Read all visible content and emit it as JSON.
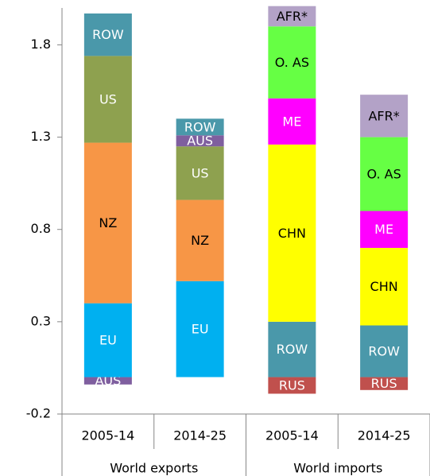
{
  "chart_data": {
    "type": "stacked_bar",
    "categories": [
      "2005-14",
      "2014-25",
      "2005-14",
      "2014-25"
    ],
    "groups": [
      {
        "label": "World exports",
        "span": 2
      },
      {
        "label": "World imports",
        "span": 2
      }
    ],
    "stacks": [
      [
        {
          "name": "AUS",
          "color": "#7f5f9f",
          "value": -0.04
        },
        {
          "name": "EU",
          "color": "#00b0f0",
          "value": 0.4
        },
        {
          "name": "NZ",
          "color": "#f79646",
          "value": 0.87
        },
        {
          "name": "US",
          "color": "#8ea14f",
          "value": 0.47
        },
        {
          "name": "ROW",
          "color": "#4a98aa",
          "value": 0.23
        }
      ],
      [
        {
          "name": "EU",
          "color": "#00b0f0",
          "value": 0.52
        },
        {
          "name": "NZ",
          "color": "#f79646",
          "value": 0.44
        },
        {
          "name": "US",
          "color": "#8ea14f",
          "value": 0.29
        },
        {
          "name": "AUS",
          "color": "#7f5f9f",
          "value": 0.06
        },
        {
          "name": "ROW",
          "color": "#4a98aa",
          "value": 0.09
        }
      ],
      [
        {
          "name": "RUS",
          "color": "#c0504d",
          "value": -0.09
        },
        {
          "name": "ROW",
          "color": "#4a98aa",
          "value": 0.3
        },
        {
          "name": "CHN",
          "color": "#ffff00",
          "value": 0.96
        },
        {
          "name": "ME",
          "color": "#ff00ff",
          "value": 0.25
        },
        {
          "name": "O. AS",
          "color": "#66ff44",
          "value": 0.39
        },
        {
          "name": "AFR*",
          "color": "#b3a2c7",
          "value": 0.11
        }
      ],
      [
        {
          "name": "RUS",
          "color": "#c0504d",
          "value": -0.07
        },
        {
          "name": "ROW",
          "color": "#4a98aa",
          "value": 0.28
        },
        {
          "name": "CHN",
          "color": "#ffff00",
          "value": 0.42
        },
        {
          "name": "ME",
          "color": "#ff00ff",
          "value": 0.2
        },
        {
          "name": "O. AS",
          "color": "#66ff44",
          "value": 0.4
        },
        {
          "name": "AFR*",
          "color": "#b3a2c7",
          "value": 0.23
        }
      ]
    ],
    "ylim": [
      -0.2,
      2.0
    ],
    "yticks": [
      -0.2,
      0.3,
      0.8,
      1.3,
      1.8
    ]
  }
}
